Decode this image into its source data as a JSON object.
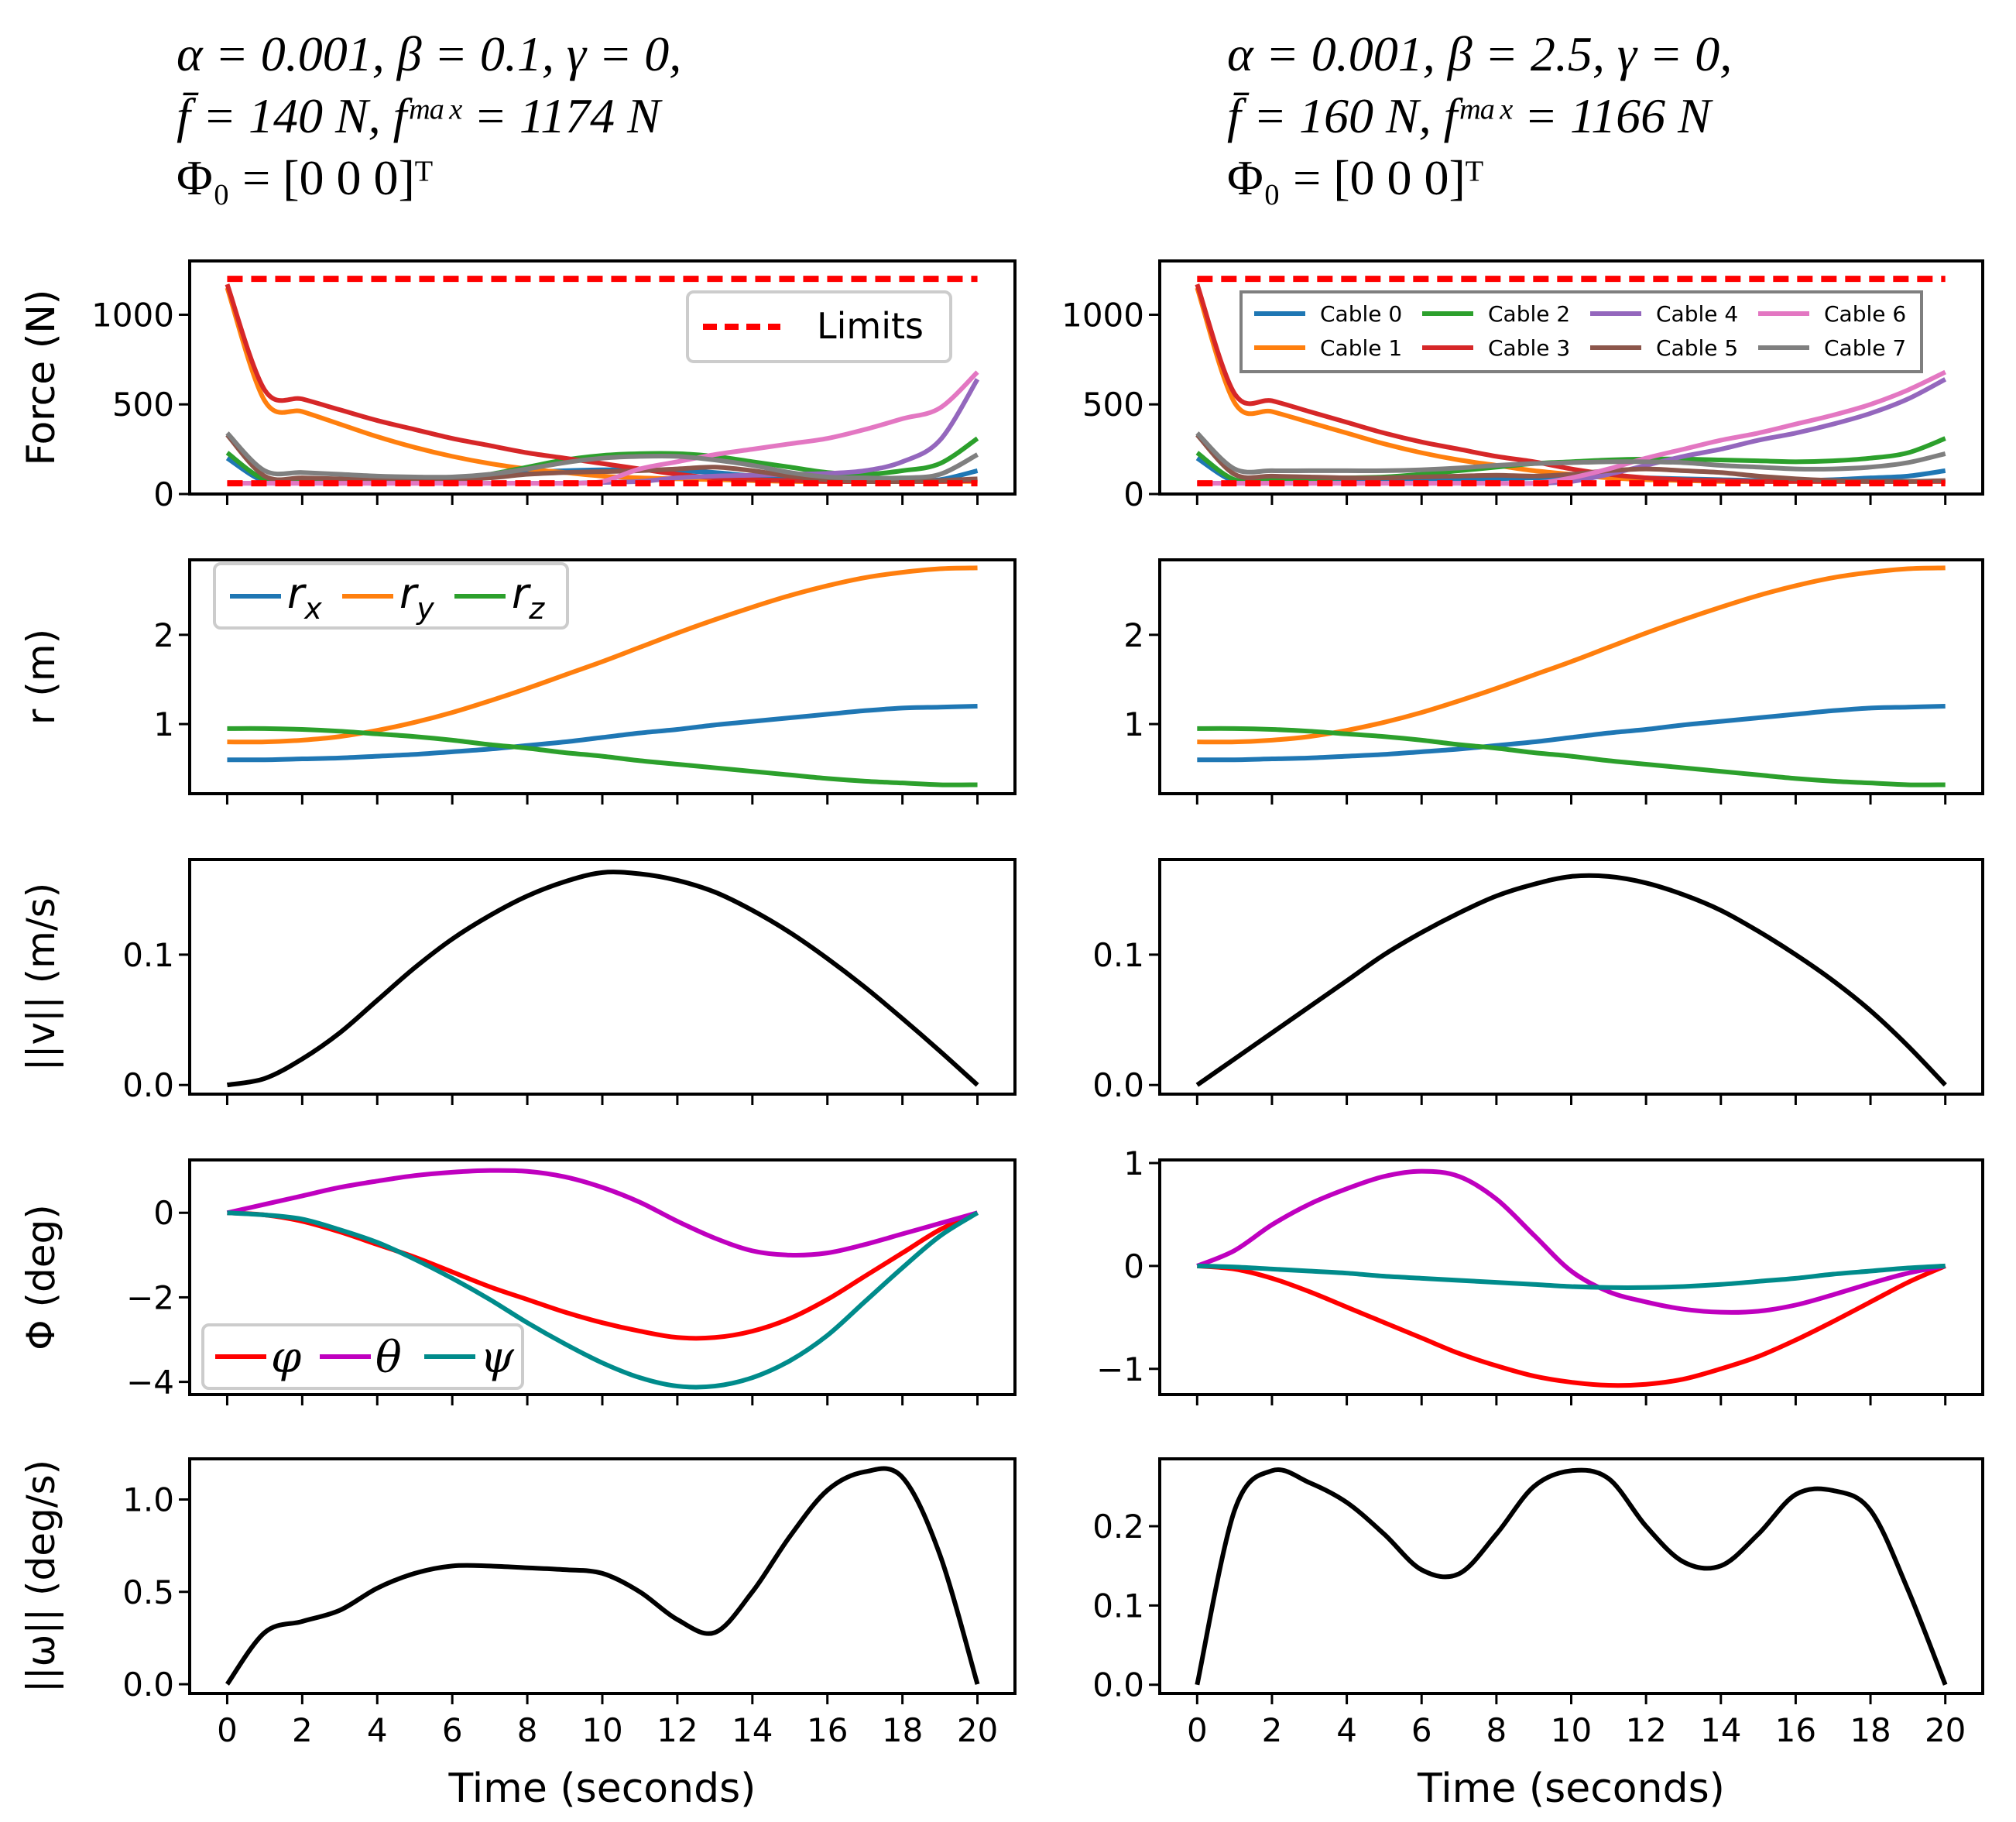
{
  "titles": [
    {
      "line1": "α = 0.001, β = 0.1, γ = 0,",
      "line2": "f̄ = 140 N, fᵐᵃˣ = 1174 N",
      "line3": "Φ₀ = [0   0   0]ᵀ"
    },
    {
      "line1": "α = 0.001, β = 2.5, γ = 0,",
      "line2": "f̄ = 160 N, fᵐᵃˣ = 1166 N",
      "line3": "Φ₀ = [0   0   0]ᵀ"
    }
  ],
  "colors": {
    "c0": "#1f77b4",
    "c1": "#ff7f0e",
    "c2": "#2ca02c",
    "c3": "#d62728",
    "c4": "#9467bd",
    "c5": "#8c564b",
    "c6": "#e377c2",
    "c7": "#7f7f7f",
    "limits": "#ff0000",
    "phi": "#ff0000",
    "theta": "#bf00bf",
    "psi": "#008b8b",
    "black": "#000000"
  },
  "chart_data": [
    {
      "type": "line",
      "ylabel": "Force (N)",
      "xlim": [
        -1,
        21
      ],
      "ylim": [
        0,
        1300
      ],
      "yticks": [
        0,
        500,
        1000
      ],
      "legend": "limits",
      "legend_loc": "upper right",
      "series": [
        {
          "name": "Cable 0",
          "color": "c0",
          "values": [
            200,
            70,
            65,
            65,
            65,
            70,
            80,
            100,
            120,
            130,
            135,
            135,
            130,
            120,
            100,
            80,
            70,
            70,
            70,
            80,
            130
          ]
        },
        {
          "name": "Cable 1",
          "color": "c1",
          "values": [
            1150,
            520,
            460,
            390,
            320,
            260,
            210,
            170,
            140,
            120,
            100,
            90,
            85,
            80,
            75,
            70,
            70,
            70,
            70,
            70,
            70
          ]
        },
        {
          "name": "Cable 2",
          "color": "c2",
          "values": [
            230,
            80,
            70,
            70,
            70,
            75,
            85,
            110,
            150,
            190,
            215,
            225,
            225,
            210,
            180,
            150,
            120,
            110,
            130,
            170,
            310
          ]
        },
        {
          "name": "Cable 3",
          "color": "c3",
          "values": [
            1170,
            580,
            530,
            470,
            410,
            360,
            310,
            270,
            230,
            200,
            170,
            140,
            110,
            90,
            80,
            75,
            70,
            70,
            70,
            70,
            75
          ]
        },
        {
          "name": "Cable 4",
          "color": "c4",
          "values": [
            60,
            60,
            60,
            60,
            60,
            60,
            60,
            60,
            60,
            60,
            65,
            70,
            90,
            100,
            105,
            110,
            115,
            130,
            180,
            300,
            640
          ]
        },
        {
          "name": "Cable 5",
          "color": "c5",
          "values": [
            330,
            100,
            90,
            85,
            80,
            80,
            80,
            90,
            110,
            120,
            125,
            130,
            140,
            150,
            130,
            100,
            80,
            70,
            70,
            75,
            85
          ]
        },
        {
          "name": "Cable 6",
          "color": "c6",
          "values": [
            60,
            60,
            60,
            60,
            60,
            60,
            60,
            60,
            60,
            60,
            70,
            140,
            180,
            220,
            250,
            280,
            310,
            360,
            420,
            480,
            680
          ]
        },
        {
          "name": "Cable 7",
          "color": "c7",
          "values": [
            340,
            130,
            120,
            110,
            100,
            95,
            95,
            110,
            140,
            175,
            200,
            210,
            210,
            190,
            160,
            120,
            95,
            90,
            90,
            110,
            220
          ]
        },
        {
          "name": "Limits",
          "color": "limits",
          "dashed": true,
          "values": [
            1200,
            1200
          ]
        },
        {
          "name": "Limits",
          "color": "limits",
          "dashed": true,
          "values": [
            60,
            60
          ]
        }
      ]
    },
    {
      "type": "line",
      "ylabel": "Force (N)",
      "xlim": [
        -1,
        21
      ],
      "ylim": [
        0,
        1300
      ],
      "yticks": [
        0,
        500,
        1000
      ],
      "legend": "cables",
      "legend_loc": "upper center",
      "series": [
        {
          "name": "Cable 0",
          "color": "c0",
          "values": [
            200,
            70,
            65,
            65,
            65,
            70,
            75,
            80,
            85,
            90,
            95,
            95,
            90,
            85,
            80,
            75,
            75,
            80,
            90,
            100,
            130
          ]
        },
        {
          "name": "Cable 1",
          "color": "c1",
          "values": [
            1150,
            510,
            460,
            400,
            340,
            280,
            230,
            190,
            160,
            130,
            110,
            90,
            80,
            75,
            70,
            70,
            70,
            70,
            70,
            70,
            70
          ]
        },
        {
          "name": "Cable 2",
          "color": "c2",
          "values": [
            230,
            80,
            80,
            85,
            90,
            95,
            110,
            130,
            150,
            170,
            180,
            190,
            195,
            195,
            190,
            185,
            180,
            185,
            200,
            230,
            310
          ]
        },
        {
          "name": "Cable 3",
          "color": "c3",
          "values": [
            1170,
            560,
            520,
            460,
            400,
            340,
            290,
            250,
            210,
            180,
            140,
            110,
            90,
            80,
            75,
            70,
            70,
            70,
            70,
            70,
            70
          ]
        },
        {
          "name": "Cable 4",
          "color": "c4",
          "values": [
            60,
            60,
            60,
            60,
            60,
            60,
            60,
            60,
            60,
            60,
            70,
            110,
            160,
            210,
            250,
            300,
            340,
            390,
            450,
            530,
            640
          ]
        },
        {
          "name": "Cable 5",
          "color": "c5",
          "values": [
            330,
            110,
            100,
            95,
            90,
            90,
            95,
            100,
            105,
            100,
            110,
            130,
            140,
            130,
            120,
            100,
            85,
            75,
            70,
            70,
            75
          ]
        },
        {
          "name": "Cable 6",
          "color": "c6",
          "values": [
            60,
            60,
            60,
            60,
            60,
            60,
            60,
            60,
            60,
            60,
            90,
            140,
            200,
            250,
            300,
            340,
            390,
            440,
            500,
            580,
            680
          ]
        },
        {
          "name": "Cable 7",
          "color": "c7",
          "values": [
            340,
            140,
            130,
            130,
            130,
            130,
            135,
            145,
            160,
            170,
            175,
            180,
            180,
            175,
            160,
            150,
            140,
            140,
            150,
            175,
            225
          ]
        },
        {
          "name": "Limits",
          "color": "limits",
          "dashed": true,
          "values": [
            1200,
            1200
          ]
        },
        {
          "name": "Limits",
          "color": "limits",
          "dashed": true,
          "values": [
            60,
            60
          ]
        }
      ]
    },
    {
      "type": "line",
      "ylabel": "r (m)",
      "xlim": [
        -1,
        21
      ],
      "ylim": [
        0.22,
        2.84
      ],
      "yticks": [
        1,
        2
      ],
      "legend": "r",
      "legend_loc": "upper left",
      "series": [
        {
          "name": "r_x",
          "color": "c0",
          "values": [
            0.6,
            0.6,
            0.61,
            0.62,
            0.64,
            0.66,
            0.69,
            0.72,
            0.76,
            0.8,
            0.85,
            0.9,
            0.94,
            0.99,
            1.03,
            1.07,
            1.11,
            1.15,
            1.18,
            1.19,
            1.2
          ]
        },
        {
          "name": "r_y",
          "color": "c1",
          "values": [
            0.8,
            0.8,
            0.82,
            0.86,
            0.93,
            1.02,
            1.13,
            1.26,
            1.4,
            1.55,
            1.7,
            1.86,
            2.02,
            2.17,
            2.31,
            2.44,
            2.55,
            2.64,
            2.7,
            2.74,
            2.75
          ]
        },
        {
          "name": "r_z",
          "color": "c2",
          "values": [
            0.95,
            0.95,
            0.94,
            0.92,
            0.89,
            0.86,
            0.82,
            0.77,
            0.73,
            0.68,
            0.64,
            0.59,
            0.55,
            0.51,
            0.47,
            0.43,
            0.39,
            0.36,
            0.34,
            0.32,
            0.32
          ]
        }
      ]
    },
    {
      "type": "line",
      "ylabel": "",
      "xlim": [
        -1,
        21
      ],
      "ylim": [
        0.22,
        2.84
      ],
      "yticks": [
        1,
        2
      ],
      "series": [
        {
          "name": "r_x",
          "color": "c0",
          "values": [
            0.6,
            0.6,
            0.61,
            0.62,
            0.64,
            0.66,
            0.69,
            0.72,
            0.76,
            0.8,
            0.85,
            0.9,
            0.94,
            0.99,
            1.03,
            1.07,
            1.11,
            1.15,
            1.18,
            1.19,
            1.2
          ]
        },
        {
          "name": "r_y",
          "color": "c1",
          "values": [
            0.8,
            0.8,
            0.82,
            0.86,
            0.93,
            1.02,
            1.13,
            1.26,
            1.4,
            1.55,
            1.7,
            1.86,
            2.02,
            2.17,
            2.31,
            2.44,
            2.55,
            2.64,
            2.7,
            2.74,
            2.75
          ]
        },
        {
          "name": "r_z",
          "color": "c2",
          "values": [
            0.95,
            0.95,
            0.94,
            0.92,
            0.89,
            0.86,
            0.82,
            0.77,
            0.73,
            0.68,
            0.64,
            0.59,
            0.55,
            0.51,
            0.47,
            0.43,
            0.39,
            0.36,
            0.34,
            0.32,
            0.32
          ]
        }
      ]
    },
    {
      "type": "line",
      "ylabel": "||v|| (m/s)",
      "xlim": [
        -1,
        21
      ],
      "ylim": [
        -0.007,
        0.173
      ],
      "yticks": [
        0.0,
        0.1
      ],
      "ticklabels": [
        "0.0",
        "0.1"
      ],
      "series": [
        {
          "name": "||v||",
          "color": "black",
          "values": [
            0,
            0.005,
            0.02,
            0.04,
            0.065,
            0.09,
            0.112,
            0.13,
            0.145,
            0.156,
            0.163,
            0.162,
            0.157,
            0.148,
            0.134,
            0.117,
            0.097,
            0.075,
            0.051,
            0.026,
            0
          ]
        }
      ]
    },
    {
      "type": "line",
      "ylabel": "",
      "xlim": [
        -1,
        21
      ],
      "ylim": [
        -0.007,
        0.173
      ],
      "yticks": [
        0.0,
        0.1
      ],
      "ticklabels": [
        "0.0",
        "0.1"
      ],
      "series": [
        {
          "name": "||v||",
          "color": "black",
          "values": [
            0,
            0.02,
            0.04,
            0.06,
            0.08,
            0.1,
            0.117,
            0.132,
            0.145,
            0.154,
            0.16,
            0.16,
            0.155,
            0.146,
            0.134,
            0.118,
            0.1,
            0.08,
            0.057,
            0.03,
            0
          ]
        }
      ]
    },
    {
      "type": "line",
      "ylabel": "Φ (deg)",
      "xlim": [
        -1,
        21
      ],
      "ylim": [
        -4.3,
        1.25
      ],
      "yticks": [
        -4,
        -2,
        0
      ],
      "ticklabels": [
        "−4",
        "−2",
        "0"
      ],
      "legend": "euler",
      "legend_loc": "lower left",
      "series": [
        {
          "name": "φ",
          "color": "phi",
          "values": [
            0,
            -0.05,
            -0.2,
            -0.45,
            -0.75,
            -1.05,
            -1.4,
            -1.75,
            -2.05,
            -2.35,
            -2.6,
            -2.8,
            -2.95,
            -2.95,
            -2.8,
            -2.5,
            -2.05,
            -1.5,
            -0.95,
            -0.4,
            0
          ]
        },
        {
          "name": "θ",
          "color": "theta",
          "values": [
            0,
            0.2,
            0.4,
            0.6,
            0.75,
            0.88,
            0.96,
            1.0,
            0.98,
            0.85,
            0.6,
            0.25,
            -0.2,
            -0.6,
            -0.9,
            -1.0,
            -0.95,
            -0.75,
            -0.5,
            -0.25,
            0
          ]
        },
        {
          "name": "ψ",
          "color": "psi",
          "values": [
            0,
            -0.05,
            -0.15,
            -0.4,
            -0.7,
            -1.1,
            -1.55,
            -2.05,
            -2.6,
            -3.1,
            -3.55,
            -3.9,
            -4.1,
            -4.1,
            -3.9,
            -3.5,
            -2.9,
            -2.1,
            -1.3,
            -0.55,
            0
          ]
        }
      ]
    },
    {
      "type": "line",
      "ylabel": "",
      "xlim": [
        -1,
        21
      ],
      "ylim": [
        -1.25,
        1.03
      ],
      "yticks": [
        -1,
        0,
        1
      ],
      "ticklabels": [
        "−1",
        "0",
        "1"
      ],
      "series": [
        {
          "name": "φ",
          "color": "phi",
          "values": [
            0,
            -0.03,
            -0.12,
            -0.25,
            -0.4,
            -0.55,
            -0.7,
            -0.85,
            -0.97,
            -1.07,
            -1.13,
            -1.16,
            -1.15,
            -1.1,
            -1.0,
            -0.88,
            -0.72,
            -0.54,
            -0.35,
            -0.16,
            0
          ]
        },
        {
          "name": "θ",
          "color": "theta",
          "values": [
            0,
            0.15,
            0.4,
            0.6,
            0.75,
            0.87,
            0.92,
            0.87,
            0.65,
            0.3,
            -0.05,
            -0.25,
            -0.35,
            -0.42,
            -0.45,
            -0.44,
            -0.38,
            -0.28,
            -0.17,
            -0.07,
            0
          ]
        },
        {
          "name": "ψ",
          "color": "psi",
          "values": [
            0,
            -0.01,
            -0.03,
            -0.05,
            -0.07,
            -0.1,
            -0.12,
            -0.14,
            -0.16,
            -0.18,
            -0.2,
            -0.21,
            -0.21,
            -0.2,
            -0.18,
            -0.15,
            -0.12,
            -0.08,
            -0.05,
            -0.02,
            0
          ]
        }
      ]
    },
    {
      "type": "line",
      "ylabel": "||ω|| (deg/s)",
      "xlim": [
        -1,
        21
      ],
      "ylim": [
        -0.05,
        1.22
      ],
      "yticks": [
        0,
        0.5,
        1.0
      ],
      "ticklabels": [
        "0.0",
        "0.5",
        "1.0"
      ],
      "xlabel": "Time (seconds)",
      "series": [
        {
          "name": "||ω||",
          "color": "black",
          "values": [
            0,
            0.28,
            0.34,
            0.4,
            0.52,
            0.6,
            0.64,
            0.64,
            0.63,
            0.62,
            0.6,
            0.5,
            0.35,
            0.28,
            0.5,
            0.8,
            1.05,
            1.15,
            1.12,
            0.7,
            0
          ]
        }
      ]
    },
    {
      "type": "line",
      "ylabel": "",
      "xlim": [
        -1,
        21
      ],
      "ylim": [
        -0.011,
        0.285
      ],
      "yticks": [
        0,
        0.1,
        0.2
      ],
      "ticklabels": [
        "0.0",
        "0.1",
        "0.2"
      ],
      "xlabel": "Time (seconds)",
      "series": [
        {
          "name": "||ω||",
          "color": "black",
          "values": [
            0,
            0.22,
            0.27,
            0.255,
            0.23,
            0.19,
            0.145,
            0.14,
            0.19,
            0.25,
            0.27,
            0.26,
            0.2,
            0.155,
            0.15,
            0.19,
            0.24,
            0.245,
            0.22,
            0.12,
            0
          ]
        }
      ]
    }
  ],
  "xticks": [
    0,
    2,
    4,
    6,
    8,
    10,
    12,
    14,
    16,
    18,
    20
  ],
  "legends": {
    "limits": [
      "Limits"
    ],
    "cables": [
      "Cable 0",
      "Cable 1",
      "Cable 2",
      "Cable 3",
      "Cable 4",
      "Cable 5",
      "Cable 6",
      "Cable 7"
    ],
    "r": [
      "r_x",
      "r_y",
      "r_z"
    ],
    "euler": [
      "φ",
      "θ",
      "ψ"
    ]
  }
}
